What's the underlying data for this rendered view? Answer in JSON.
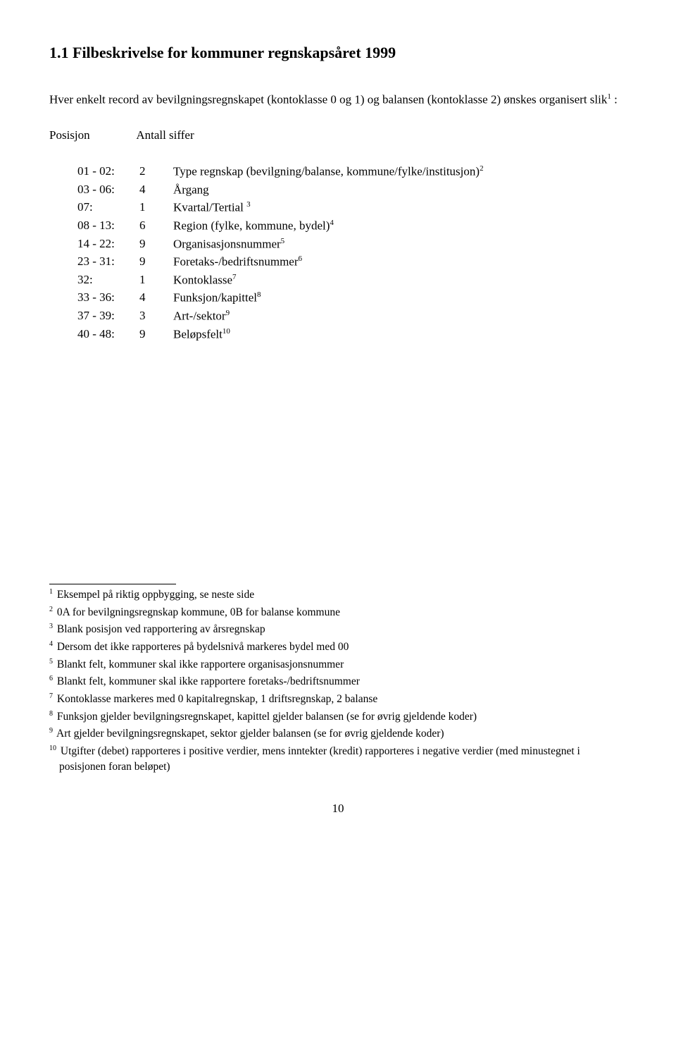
{
  "title": "1.1 Filbeskrivelse for kommuner regnskapsåret 1999",
  "intro_pre": "Hver enkelt record av bevilgningsregnskapet (kontoklasse 0 og 1) og balansen (kontoklasse 2) ønskes organisert slik",
  "intro_sup": "1",
  "intro_post": " :",
  "header_left": "Posisjon",
  "header_right": "Antall siffer",
  "rows": [
    {
      "pos": "01 - 02:",
      "count": "2",
      "desc": "Type regnskap (bevilgning/balanse, kommune/fylke/institusjon)",
      "sup": "2"
    },
    {
      "pos": "03 - 06:",
      "count": "4",
      "desc": "Årgang",
      "sup": ""
    },
    {
      "pos": "07:",
      "count": "1",
      "desc": "Kvartal/Tertial ",
      "sup": "3"
    },
    {
      "pos": "08 - 13:",
      "count": "6",
      "desc": "Region (fylke, kommune, bydel)",
      "sup": "4"
    },
    {
      "pos": "14 - 22:",
      "count": "9",
      "desc": "Organisasjonsnummer",
      "sup": "5"
    },
    {
      "pos": "23 - 31:",
      "count": "9",
      "desc": "Foretaks-/bedriftsnummer",
      "sup": "6"
    },
    {
      "pos": "32:",
      "count": "1",
      "desc": "Kontoklasse",
      "sup": "7"
    },
    {
      "pos": "33 - 36:",
      "count": "4",
      "desc": "Funksjon/kapittel",
      "sup": "8"
    },
    {
      "pos": "37 - 39:",
      "count": "3",
      "desc": "Art-/sektor",
      "sup": "9"
    },
    {
      "pos": "40 - 48:",
      "count": "9",
      "desc": "Beløpsfelt",
      "sup": "10"
    }
  ],
  "footnotes": [
    {
      "n": "1",
      "t": "Eksempel på riktig oppbygging, se neste side"
    },
    {
      "n": "2",
      "t": "0A for bevilgningsregnskap kommune, 0B for balanse kommune"
    },
    {
      "n": "3",
      "t": "Blank posisjon ved rapportering av årsregnskap"
    },
    {
      "n": "4",
      "t": "Dersom det ikke rapporteres på bydelsnivå markeres bydel med 00"
    },
    {
      "n": "5",
      "t": "Blankt felt, kommuner skal ikke rapportere organisasjonsnummer"
    },
    {
      "n": "6",
      "t": "Blankt felt, kommuner skal ikke rapportere foretaks-/bedriftsnummer"
    },
    {
      "n": "7",
      "t": "Kontoklasse markeres med 0 kapitalregnskap, 1 driftsregnskap, 2 balanse"
    },
    {
      "n": "8",
      "t": "Funksjon gjelder bevilgningsregnskapet, kapittel gjelder balansen (se for øvrig gjeldende koder)"
    },
    {
      "n": "9",
      "t": "Art gjelder bevilgningsregnskapet, sektor gjelder balansen (se for øvrig gjeldende koder)"
    },
    {
      "n": "10",
      "t": "Utgifter (debet) rapporteres i positive verdier, mens inntekter (kredit) rapporteres i negative verdier (med minustegnet i posisjonen foran beløpet)"
    }
  ],
  "page_number": "10"
}
